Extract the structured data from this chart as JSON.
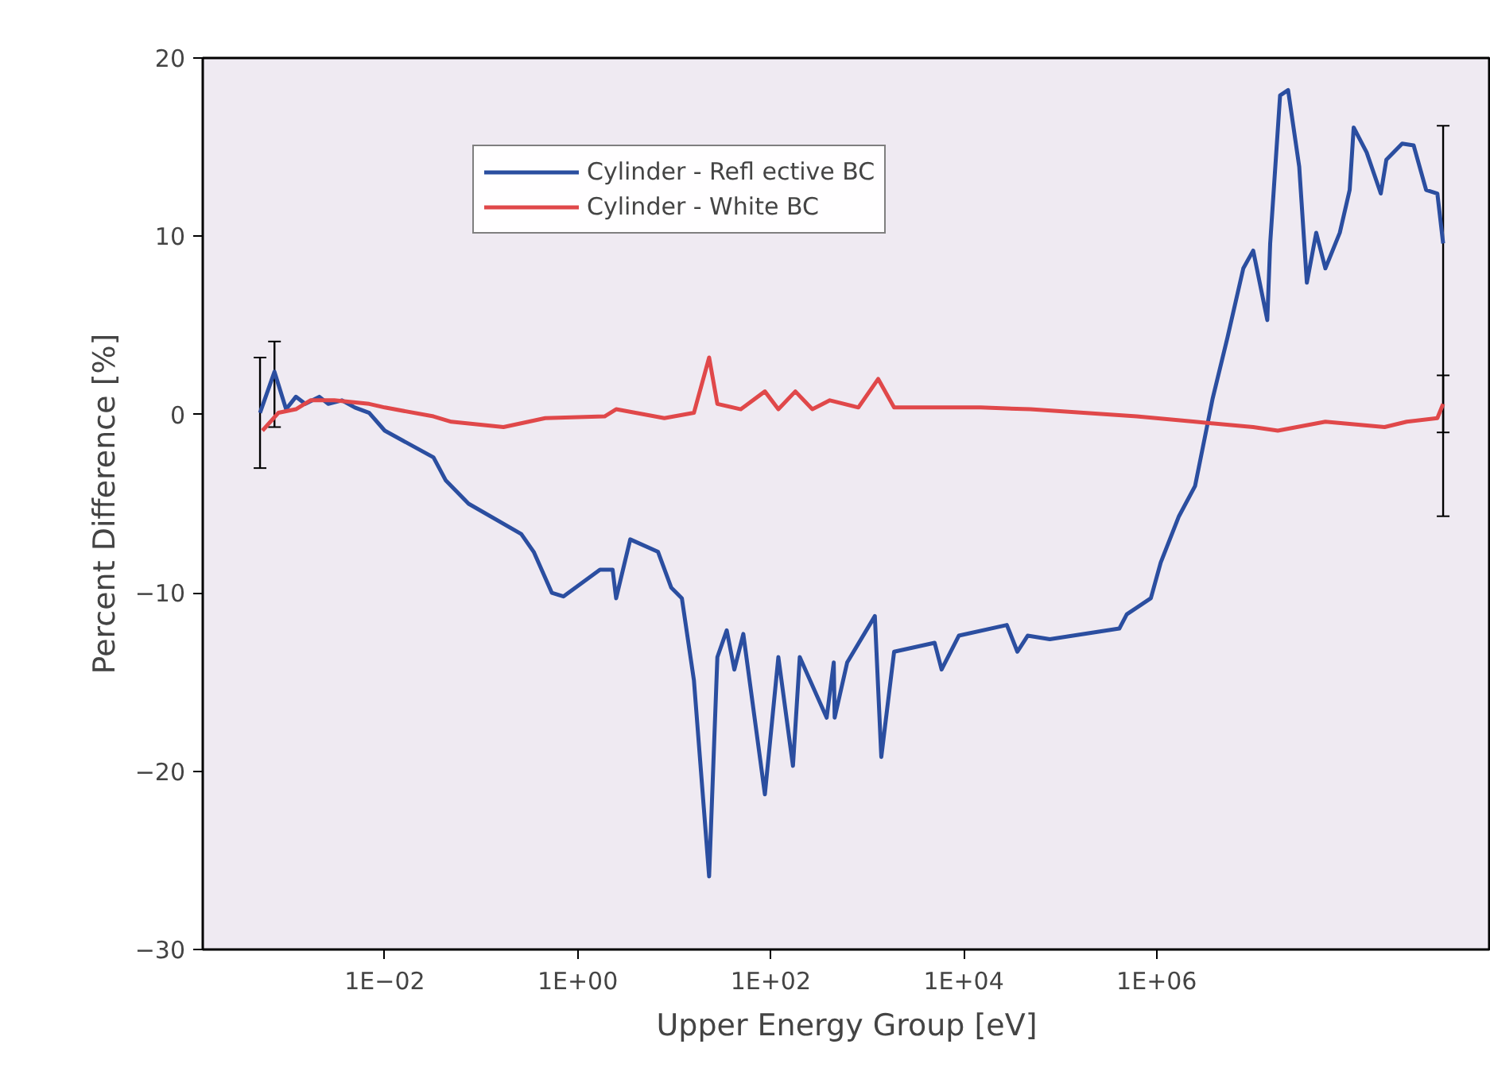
{
  "chart_data": {
    "type": "line",
    "xlabel": "Upper Energy Group [eV]",
    "ylabel": "Percent Difference [%]",
    "log": "x",
    "xlim": [
      0.00013,
      2900000000
    ],
    "xticks": [
      {
        "value": 0.01,
        "label": "1E−02"
      },
      {
        "value": 1,
        "label": "1E+00"
      },
      {
        "value": 100,
        "label": "1E+02"
      },
      {
        "value": 10000,
        "label": "1E+04"
      },
      {
        "value": 1000000,
        "label": "1E+06"
      }
    ],
    "ylim": [
      -30,
      20
    ],
    "yticks": [
      {
        "value": -30,
        "label": "−30"
      },
      {
        "value": -20,
        "label": "−20"
      },
      {
        "value": -10,
        "label": "−10"
      },
      {
        "value": 0,
        "label": "0"
      },
      {
        "value": 10,
        "label": "10"
      },
      {
        "value": 20,
        "label": "20"
      }
    ],
    "grid": false,
    "legend": "top",
    "marker": "none",
    "line_style": "solid",
    "series": [
      {
        "name": "Cylinder - Refl ective BC",
        "color": "#2b4ea0",
        "x": [
          0.00051,
          0.00072,
          0.00095,
          0.0012,
          0.0015,
          0.0021,
          0.0026,
          0.0036,
          0.0049,
          0.0069,
          0.01,
          0.032,
          0.043,
          0.074,
          0.26,
          0.35,
          0.54,
          0.71,
          1.7,
          2.3,
          2.5,
          3.5,
          6.8,
          9.3,
          12,
          16,
          23,
          28,
          35,
          42,
          52,
          87,
          120,
          170,
          200,
          380,
          450,
          460,
          620,
          1200,
          1400,
          1900,
          5000,
          5900,
          8900,
          28000,
          36000,
          46000,
          78000,
          410000,
          490000,
          870000,
          1100000,
          1700000,
          2500000,
          3800000,
          5400000,
          7900000,
          10000000,
          14000000,
          15000000,
          19000000,
          23000000,
          30000000,
          36000000,
          45000000,
          56000000,
          79000000,
          100000000,
          110000000,
          150000000,
          210000000,
          240000000,
          350000000,
          460000000,
          620000000,
          810000000,
          930000000
        ],
        "values": [
          0.1,
          2.4,
          0.3,
          1.0,
          0.6,
          1.0,
          0.6,
          0.8,
          0.4,
          0.1,
          -0.9,
          -2.4,
          -3.7,
          -5.0,
          -6.7,
          -7.7,
          -10.0,
          -10.2,
          -8.7,
          -8.7,
          -10.3,
          -7.0,
          -7.7,
          -9.7,
          -10.3,
          -14.9,
          -25.9,
          -13.6,
          -12.1,
          -14.3,
          -12.3,
          -21.3,
          -13.6,
          -19.7,
          -13.6,
          -17.0,
          -13.9,
          -17.0,
          -13.9,
          -11.3,
          -19.2,
          -13.3,
          -12.8,
          -14.3,
          -12.4,
          -11.8,
          -13.3,
          -12.4,
          -12.6,
          -12.0,
          -11.2,
          -10.3,
          -8.3,
          -5.7,
          -4.0,
          0.9,
          4.3,
          8.2,
          9.2,
          5.3,
          9.6,
          17.9,
          18.2,
          13.9,
          7.4,
          10.2,
          8.2,
          10.2,
          12.6,
          16.1,
          14.7,
          12.4,
          14.3,
          15.2,
          15.1,
          12.6,
          12.4,
          9.6
        ],
        "errors": [
          [
            -3.0,
            3.2
          ],
          [
            -0.7,
            4.1
          ],
          null,
          null,
          null,
          null,
          null,
          null,
          null,
          null,
          null,
          null,
          null,
          null,
          null,
          null,
          null,
          null,
          null,
          null,
          null,
          null,
          null,
          null,
          null,
          null,
          null,
          null,
          null,
          null,
          null,
          null,
          null,
          null,
          null,
          null,
          null,
          null,
          null,
          null,
          null,
          null,
          null,
          null,
          null,
          null,
          null,
          null,
          null,
          null,
          null,
          null,
          null,
          null,
          null,
          null,
          null,
          null,
          null,
          null,
          null,
          null,
          null,
          null,
          null,
          null,
          null,
          null,
          null,
          null,
          null,
          null,
          null,
          null,
          null,
          null,
          null,
          [
            -5.7,
            16.2
          ]
        ]
      },
      {
        "name": "Cylinder - White BC",
        "color": "#e0484a",
        "x": [
          0.00054,
          0.00079,
          0.0012,
          0.0017,
          0.003,
          0.0069,
          0.01,
          0.032,
          0.049,
          0.17,
          0.46,
          1.9,
          2.5,
          7.9,
          16,
          23,
          28,
          49,
          87,
          120,
          180,
          270,
          410,
          810,
          1300,
          1900,
          5900,
          15000,
          49000,
          620000,
          2500000,
          10000000,
          18000000,
          56000000,
          230000000,
          390000000,
          810000000,
          930000000
        ],
        "values": [
          -0.9,
          0.1,
          0.3,
          0.8,
          0.8,
          0.6,
          0.4,
          -0.1,
          -0.4,
          -0.7,
          -0.2,
          -0.1,
          0.3,
          -0.2,
          0.1,
          3.2,
          0.6,
          0.3,
          1.3,
          0.3,
          1.3,
          0.3,
          0.8,
          0.4,
          2.0,
          0.4,
          0.4,
          0.4,
          0.3,
          -0.1,
          -0.4,
          -0.7,
          -0.9,
          -0.4,
          -0.7,
          -0.4,
          -0.2,
          0.6
        ],
        "errors": [
          null,
          null,
          null,
          null,
          null,
          null,
          null,
          null,
          null,
          null,
          null,
          null,
          null,
          null,
          null,
          null,
          null,
          null,
          null,
          null,
          null,
          null,
          null,
          null,
          null,
          null,
          null,
          null,
          null,
          null,
          null,
          null,
          null,
          null,
          null,
          null,
          null,
          [
            -1.0,
            2.2
          ]
        ]
      }
    ]
  }
}
